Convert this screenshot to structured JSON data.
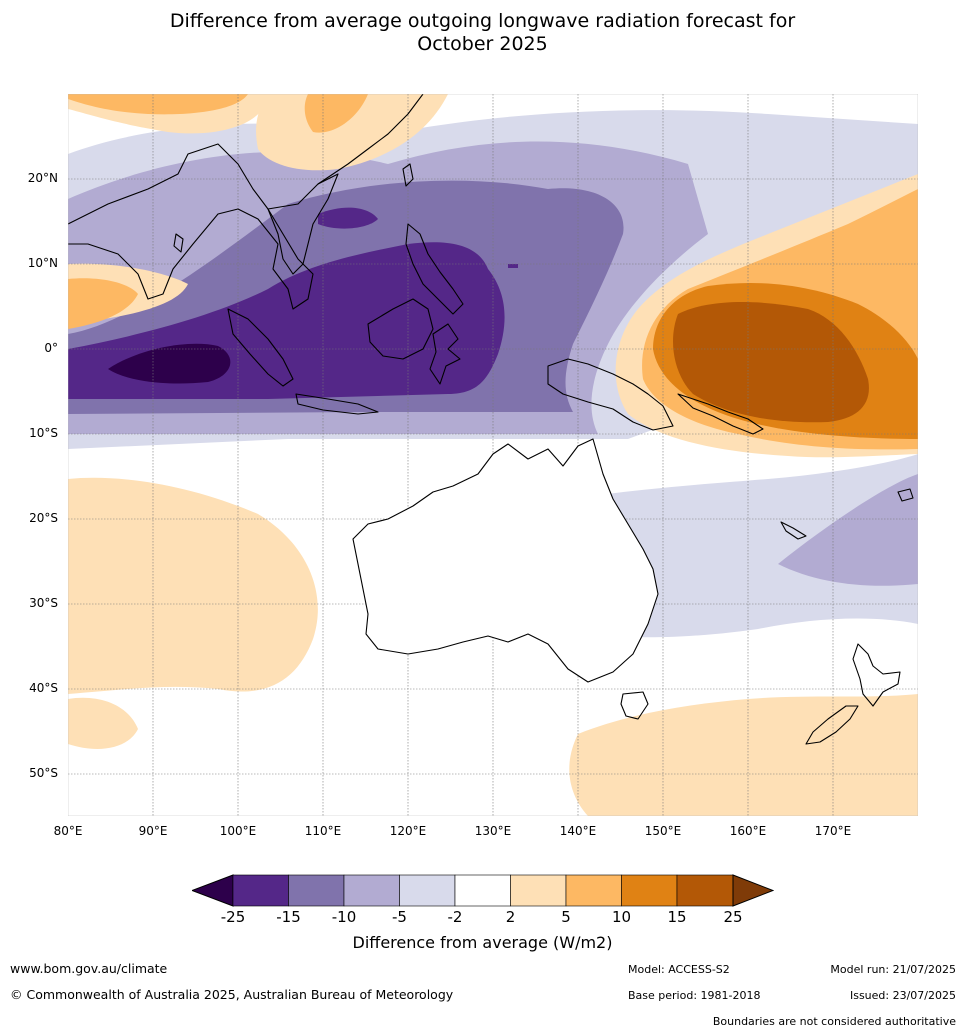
{
  "title": {
    "line1": "Difference from average outgoing longwave radiation forecast for",
    "line2": "October 2025"
  },
  "map": {
    "latitude_labels": [
      "20°N",
      "10°N",
      "0°",
      "10°S",
      "20°S",
      "30°S",
      "40°S",
      "50°S"
    ],
    "longitude_labels": [
      "80°E",
      "90°E",
      "100°E",
      "110°E",
      "120°E",
      "130°E",
      "140°E",
      "150°E",
      "160°E",
      "170°E"
    ],
    "lon_range": [
      80,
      180
    ],
    "lat_range": [
      -55,
      30
    ]
  },
  "legend": {
    "ticks": [
      "-25",
      "-15",
      "-10",
      "-5",
      "-2",
      "2",
      "5",
      "10",
      "15",
      "25"
    ],
    "bins": [
      {
        "range": "< -25",
        "color": "#2d004b"
      },
      {
        "range": "-25 to -15",
        "color": "#542788"
      },
      {
        "range": "-15 to -10",
        "color": "#8073ac"
      },
      {
        "range": "-10 to -5",
        "color": "#b2abd2"
      },
      {
        "range": "-5 to -2",
        "color": "#d8daeb"
      },
      {
        "range": "-2 to 2",
        "color": "#ffffff"
      },
      {
        "range": "2 to 5",
        "color": "#fee0b6"
      },
      {
        "range": "5 to 10",
        "color": "#fdb863"
      },
      {
        "range": "10 to 15",
        "color": "#e08214"
      },
      {
        "range": "15 to 25",
        "color": "#b35806"
      },
      {
        "range": "> 25",
        "color": "#7f3b08"
      }
    ],
    "label": "Difference from average (W/m2)"
  },
  "footer": {
    "website": "www.bom.gov.au/climate",
    "copyright": "© Commonwealth of Australia 2025, Australian Bureau of Meteorology",
    "model": "Model: ACCESS-S2",
    "base_period": "Base period: 1981-2018",
    "model_run": "Model run: 21/07/2025",
    "issued": "Issued: 23/07/2025",
    "boundaries_note": "Boundaries are not considered authoritative"
  }
}
